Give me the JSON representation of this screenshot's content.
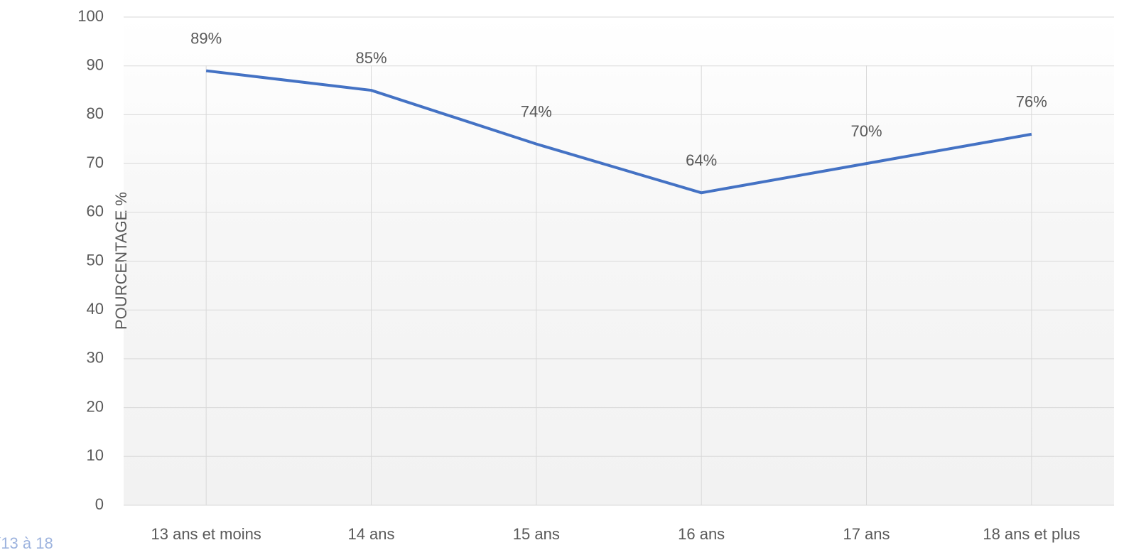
{
  "chart_data": {
    "type": "line",
    "y_axis_label": "POURCENTAGE  %",
    "footnote": "(13 à 18",
    "categories": [
      "13 ans et moins",
      "14 ans",
      "15 ans",
      "16 ans",
      "17 ans",
      "18 ans et plus"
    ],
    "series": [
      {
        "color": "#4472c4",
        "values": [
          89,
          85,
          74,
          64,
          70,
          76
        ],
        "value_labels": [
          "89%",
          "85%",
          "74%",
          "64%",
          "70%",
          "76%"
        ]
      }
    ],
    "ylim": [
      0,
      100
    ],
    "yticks": [
      0,
      10,
      20,
      30,
      40,
      50,
      60,
      70,
      80,
      90,
      100
    ],
    "grid": true
  }
}
